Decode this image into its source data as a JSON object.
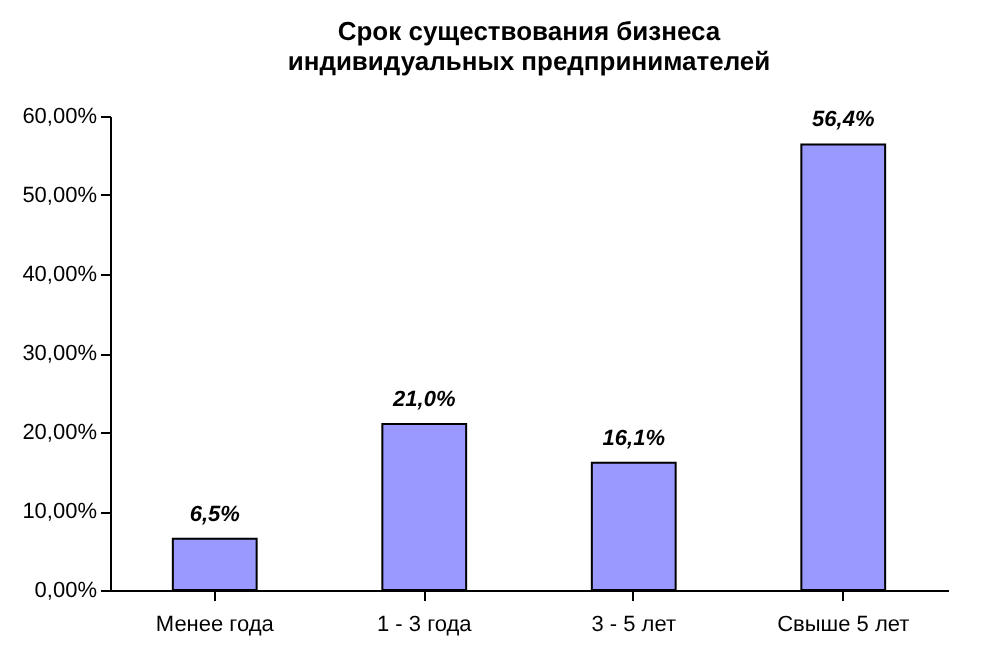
{
  "chart_data": {
    "type": "bar",
    "title": "Срок существования бизнеса индивидуальных предпринимателей",
    "categories": [
      "Менее года",
      "1 - 3 года",
      "3 - 5 лет",
      "Свыше 5 лет"
    ],
    "values": [
      6.5,
      21.0,
      16.1,
      56.4
    ],
    "value_labels": [
      "6,5%",
      "21,0%",
      "16,1%",
      "56,4%"
    ],
    "color": "#9999ff",
    "ylim": [
      0,
      60
    ],
    "yticks": [
      {
        "value": 0,
        "label": "0,00%"
      },
      {
        "value": 10,
        "label": "10,00%"
      },
      {
        "value": 20,
        "label": "20,00%"
      },
      {
        "value": 30,
        "label": "30,00%"
      },
      {
        "value": 40,
        "label": "40,00%"
      },
      {
        "value": 50,
        "label": "50,00%"
      },
      {
        "value": 60,
        "label": "60,00%"
      }
    ],
    "grid": false
  }
}
